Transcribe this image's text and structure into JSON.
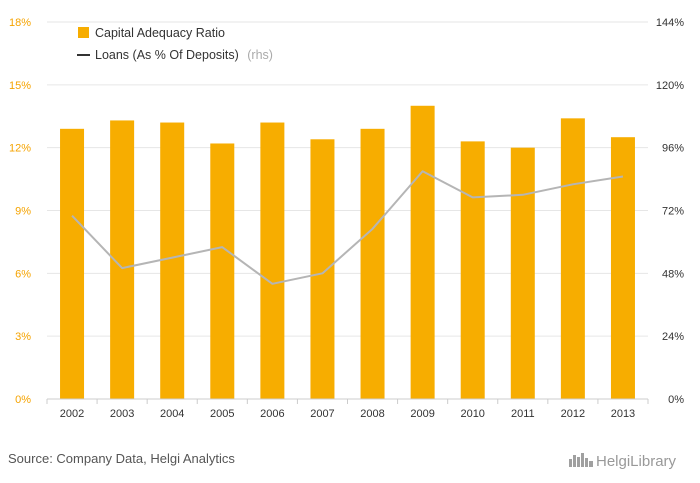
{
  "chart_data": {
    "type": "bar",
    "categories": [
      "2002",
      "2003",
      "2004",
      "2005",
      "2006",
      "2007",
      "2008",
      "2009",
      "2010",
      "2011",
      "2012",
      "2013"
    ],
    "series": [
      {
        "name": "Capital Adequacy Ratio",
        "type": "bar",
        "axis": "left",
        "unit": "%",
        "values": [
          12.9,
          13.3,
          13.2,
          12.2,
          13.2,
          12.4,
          12.9,
          14.0,
          12.3,
          12.0,
          13.4,
          12.5
        ]
      },
      {
        "name": "Loans (As % Of Deposits)",
        "type": "line",
        "axis": "right",
        "unit": "%",
        "values": [
          70,
          50,
          54,
          58,
          44,
          48,
          65,
          87,
          77,
          78,
          82,
          85
        ]
      }
    ],
    "left_axis": {
      "ylim": [
        0,
        18
      ],
      "ticks": [
        0,
        3,
        6,
        9,
        12,
        15,
        18
      ],
      "tick_labels": [
        "0%",
        "3%",
        "6%",
        "9%",
        "12%",
        "15%",
        "18%"
      ]
    },
    "right_axis": {
      "ylim": [
        0,
        144
      ],
      "ticks": [
        0,
        24,
        48,
        72,
        96,
        120,
        144
      ],
      "tick_labels": [
        "0%",
        "24%",
        "48%",
        "72%",
        "96%",
        "120%",
        "144%"
      ]
    },
    "legend": {
      "placement": "top-left",
      "items": [
        {
          "label": "Capital Adequacy Ratio",
          "note": ""
        },
        {
          "label": "Loans (As % Of Deposits)",
          "note": "(rhs)"
        }
      ]
    },
    "grid": true,
    "colors": {
      "bar": "#f7ad00",
      "line": "#b5b5b5",
      "grid": "#e6e6e6",
      "left_tick": "#f5a300",
      "right_tick": "#333333",
      "legend_line": "#333333"
    }
  },
  "footer": {
    "source": "Source: Company Data, Helgi Analytics",
    "brand": "HelgiLibrary",
    "brand_icon": "helgi-library-logo-icon"
  }
}
